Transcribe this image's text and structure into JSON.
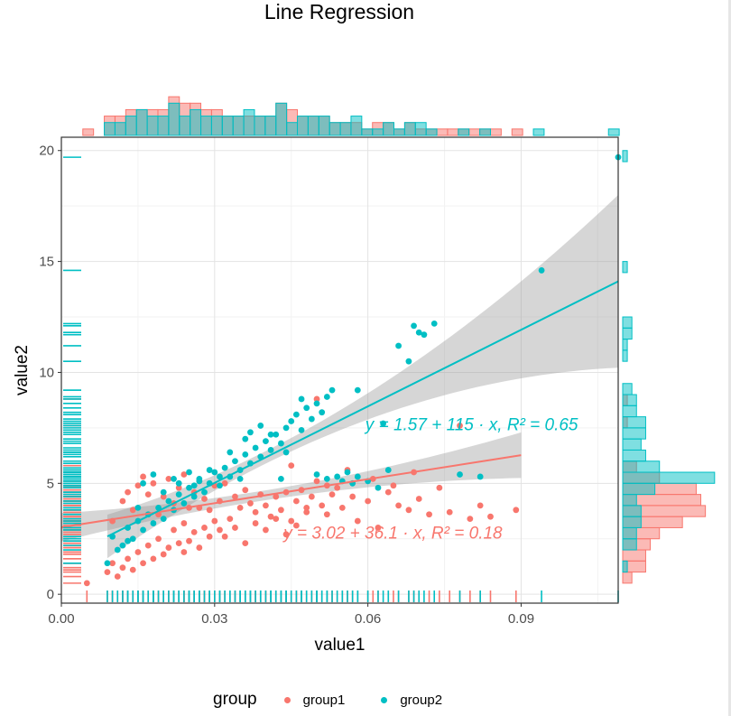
{
  "chart_data": {
    "type": "scatter",
    "title": "Line Regression",
    "xlabel": "value1",
    "ylabel": "value2",
    "xlim": [
      0.0,
      0.109
    ],
    "ylim": [
      -0.4,
      20.6
    ],
    "x_ticks": [
      "0.00",
      "0.03",
      "0.06",
      "0.09"
    ],
    "x_tick_values": [
      0.0,
      0.03,
      0.06,
      0.09
    ],
    "y_ticks": [
      "0",
      "5",
      "10",
      "15",
      "20"
    ],
    "y_tick_values": [
      0,
      5,
      10,
      15,
      20
    ],
    "grid": true,
    "marginal_histograms": true,
    "rug": true,
    "legend": {
      "title": "group",
      "position": "bottom"
    },
    "series": [
      {
        "name": "group1",
        "color": "#F8766D",
        "equation": "y = 3.02 + 36.1 · x,  R² = 0.18",
        "regression": {
          "intercept": 3.02,
          "slope": 36.1,
          "x_range": [
            0.0,
            0.09
          ]
        },
        "points": [
          [
            0.005,
            0.5
          ],
          [
            0.009,
            1.0
          ],
          [
            0.01,
            1.4
          ],
          [
            0.011,
            0.8
          ],
          [
            0.012,
            1.2
          ],
          [
            0.013,
            1.6
          ],
          [
            0.014,
            1.1
          ],
          [
            0.015,
            1.9
          ],
          [
            0.016,
            1.4
          ],
          [
            0.017,
            2.2
          ],
          [
            0.018,
            1.6
          ],
          [
            0.019,
            2.5
          ],
          [
            0.02,
            1.8
          ],
          [
            0.021,
            2.1
          ],
          [
            0.022,
            2.9
          ],
          [
            0.023,
            2.3
          ],
          [
            0.024,
            1.9
          ],
          [
            0.025,
            2.4
          ],
          [
            0.026,
            2.8
          ],
          [
            0.027,
            2.1
          ],
          [
            0.028,
            3.0
          ],
          [
            0.029,
            2.6
          ],
          [
            0.03,
            3.3
          ],
          [
            0.031,
            2.9
          ],
          [
            0.032,
            2.6
          ],
          [
            0.01,
            3.3
          ],
          [
            0.012,
            4.2
          ],
          [
            0.013,
            4.6
          ],
          [
            0.014,
            3.8
          ],
          [
            0.015,
            4.9
          ],
          [
            0.016,
            5.3
          ],
          [
            0.017,
            4.5
          ],
          [
            0.018,
            5.0
          ],
          [
            0.019,
            3.6
          ],
          [
            0.02,
            4.4
          ],
          [
            0.021,
            5.2
          ],
          [
            0.022,
            4.1
          ],
          [
            0.023,
            4.8
          ],
          [
            0.024,
            5.4
          ],
          [
            0.025,
            3.9
          ],
          [
            0.026,
            4.6
          ],
          [
            0.027,
            5.1
          ],
          [
            0.028,
            4.3
          ],
          [
            0.029,
            3.8
          ],
          [
            0.03,
            4.9
          ],
          [
            0.031,
            4.2
          ],
          [
            0.032,
            5.0
          ],
          [
            0.033,
            3.4
          ],
          [
            0.034,
            4.4
          ],
          [
            0.035,
            3.9
          ],
          [
            0.036,
            4.7
          ],
          [
            0.037,
            4.1
          ],
          [
            0.038,
            3.7
          ],
          [
            0.039,
            4.5
          ],
          [
            0.04,
            4.0
          ],
          [
            0.041,
            3.5
          ],
          [
            0.042,
            4.4
          ],
          [
            0.043,
            3.8
          ],
          [
            0.044,
            4.6
          ],
          [
            0.045,
            3.3
          ],
          [
            0.046,
            4.2
          ],
          [
            0.047,
            4.7
          ],
          [
            0.048,
            3.9
          ],
          [
            0.049,
            4.4
          ],
          [
            0.05,
            5.1
          ],
          [
            0.051,
            4.0
          ],
          [
            0.052,
            3.6
          ],
          [
            0.053,
            4.5
          ],
          [
            0.054,
            4.8
          ],
          [
            0.055,
            3.9
          ],
          [
            0.057,
            4.4
          ],
          [
            0.058,
            3.3
          ],
          [
            0.06,
            4.2
          ],
          [
            0.062,
            3.0
          ],
          [
            0.064,
            4.6
          ],
          [
            0.066,
            4.0
          ],
          [
            0.068,
            3.8
          ],
          [
            0.07,
            4.3
          ],
          [
            0.072,
            3.6
          ],
          [
            0.074,
            4.8
          ],
          [
            0.076,
            3.7
          ],
          [
            0.078,
            7.6
          ],
          [
            0.08,
            3.4
          ],
          [
            0.082,
            4.0
          ],
          [
            0.084,
            3.5
          ],
          [
            0.089,
            3.8
          ],
          [
            0.036,
            2.3
          ],
          [
            0.04,
            2.9
          ],
          [
            0.046,
            3.1
          ],
          [
            0.038,
            3.2
          ],
          [
            0.044,
            2.7
          ],
          [
            0.034,
            3.0
          ],
          [
            0.027,
            3.9
          ],
          [
            0.024,
            3.2
          ],
          [
            0.042,
            3.4
          ],
          [
            0.048,
            3.7
          ],
          [
            0.052,
            4.9
          ],
          [
            0.05,
            8.8
          ],
          [
            0.045,
            5.8
          ],
          [
            0.056,
            5.6
          ],
          [
            0.061,
            5.2
          ],
          [
            0.065,
            4.9
          ],
          [
            0.069,
            5.5
          ]
        ]
      },
      {
        "name": "group2",
        "color": "#00BFC4",
        "equation": "y = 1.57 + 115 · x,  R² = 0.65",
        "regression": {
          "intercept": 1.57,
          "slope": 115,
          "x_range": [
            0.009,
            0.109
          ]
        },
        "points": [
          [
            0.009,
            1.4
          ],
          [
            0.01,
            2.6
          ],
          [
            0.012,
            2.2
          ],
          [
            0.013,
            3.0
          ],
          [
            0.014,
            2.5
          ],
          [
            0.015,
            3.3
          ],
          [
            0.016,
            2.9
          ],
          [
            0.017,
            3.6
          ],
          [
            0.018,
            3.2
          ],
          [
            0.019,
            3.9
          ],
          [
            0.02,
            3.4
          ],
          [
            0.021,
            4.2
          ],
          [
            0.022,
            3.8
          ],
          [
            0.023,
            4.5
          ],
          [
            0.024,
            4.1
          ],
          [
            0.025,
            4.8
          ],
          [
            0.026,
            4.4
          ],
          [
            0.027,
            5.2
          ],
          [
            0.028,
            4.6
          ],
          [
            0.029,
            5.0
          ],
          [
            0.03,
            5.5
          ],
          [
            0.031,
            4.9
          ],
          [
            0.032,
            5.7
          ],
          [
            0.033,
            5.3
          ],
          [
            0.034,
            6.0
          ],
          [
            0.035,
            5.6
          ],
          [
            0.036,
            6.3
          ],
          [
            0.037,
            5.9
          ],
          [
            0.038,
            6.6
          ],
          [
            0.039,
            6.2
          ],
          [
            0.04,
            6.9
          ],
          [
            0.041,
            6.5
          ],
          [
            0.042,
            7.2
          ],
          [
            0.043,
            6.8
          ],
          [
            0.044,
            7.5
          ],
          [
            0.045,
            7.8
          ],
          [
            0.046,
            8.1
          ],
          [
            0.047,
            7.4
          ],
          [
            0.048,
            8.4
          ],
          [
            0.049,
            7.9
          ],
          [
            0.05,
            8.6
          ],
          [
            0.051,
            8.2
          ],
          [
            0.052,
            8.9
          ],
          [
            0.053,
            9.2
          ],
          [
            0.054,
            5.3
          ],
          [
            0.055,
            5.1
          ],
          [
            0.056,
            5.5
          ],
          [
            0.057,
            5.0
          ],
          [
            0.058,
            5.3
          ],
          [
            0.06,
            5.1
          ],
          [
            0.062,
            4.8
          ],
          [
            0.064,
            5.6
          ],
          [
            0.066,
            11.2
          ],
          [
            0.068,
            10.5
          ],
          [
            0.069,
            12.1
          ],
          [
            0.07,
            11.8
          ],
          [
            0.071,
            11.7
          ],
          [
            0.073,
            12.2
          ],
          [
            0.078,
            5.4
          ],
          [
            0.082,
            5.3
          ],
          [
            0.094,
            14.6
          ],
          [
            0.109,
            19.7
          ],
          [
            0.016,
            5.0
          ],
          [
            0.018,
            5.4
          ],
          [
            0.022,
            5.2
          ],
          [
            0.025,
            5.5
          ],
          [
            0.027,
            5.1
          ],
          [
            0.029,
            5.6
          ],
          [
            0.031,
            5.3
          ],
          [
            0.023,
            5.0
          ],
          [
            0.026,
            4.9
          ],
          [
            0.02,
            4.6
          ],
          [
            0.015,
            3.9
          ],
          [
            0.011,
            2.0
          ],
          [
            0.013,
            2.4
          ],
          [
            0.036,
            7.0
          ],
          [
            0.039,
            7.6
          ],
          [
            0.041,
            7.2
          ],
          [
            0.044,
            6.4
          ],
          [
            0.047,
            8.8
          ],
          [
            0.033,
            6.4
          ],
          [
            0.035,
            5.2
          ],
          [
            0.037,
            7.3
          ],
          [
            0.043,
            5.2
          ],
          [
            0.058,
            9.2
          ],
          [
            0.063,
            7.7
          ],
          [
            0.05,
            5.4
          ],
          [
            0.052,
            5.2
          ]
        ]
      }
    ]
  }
}
